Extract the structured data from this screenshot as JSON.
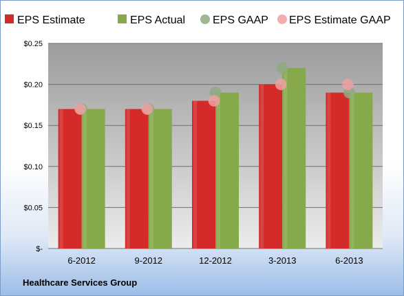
{
  "chart_data": {
    "type": "bar",
    "categories": [
      "6-2012",
      "9-2012",
      "12-2012",
      "3-2013",
      "6-2013"
    ],
    "series": [
      {
        "name": "EPS Estimate",
        "kind": "bar",
        "color": "#d42a2a",
        "values": [
          0.17,
          0.17,
          0.18,
          0.2,
          0.19
        ]
      },
      {
        "name": "EPS Actual",
        "kind": "bar",
        "color": "#86a94a",
        "values": [
          0.17,
          0.17,
          0.19,
          0.22,
          0.19
        ]
      },
      {
        "name": "EPS GAAP",
        "kind": "marker",
        "color": "#8faa80",
        "values": [
          0.17,
          0.17,
          0.19,
          0.22,
          0.19
        ]
      },
      {
        "name": "EPS Estimate GAAP",
        "kind": "marker",
        "color": "#f0a0a0",
        "values": [
          0.17,
          0.17,
          0.18,
          0.2,
          0.2
        ]
      }
    ],
    "ylim": [
      0,
      0.25
    ],
    "yticks": [
      {
        "value": 0,
        "label": "$-"
      },
      {
        "value": 0.05,
        "label": "$0.05"
      },
      {
        "value": 0.1,
        "label": "$0.10"
      },
      {
        "value": 0.15,
        "label": "$0.15"
      },
      {
        "value": 0.2,
        "label": "$0.20"
      },
      {
        "value": 0.25,
        "label": "$0.25"
      }
    ],
    "grid": true,
    "legend": "top"
  },
  "footer": {
    "company": "Healthcare Services Group"
  }
}
